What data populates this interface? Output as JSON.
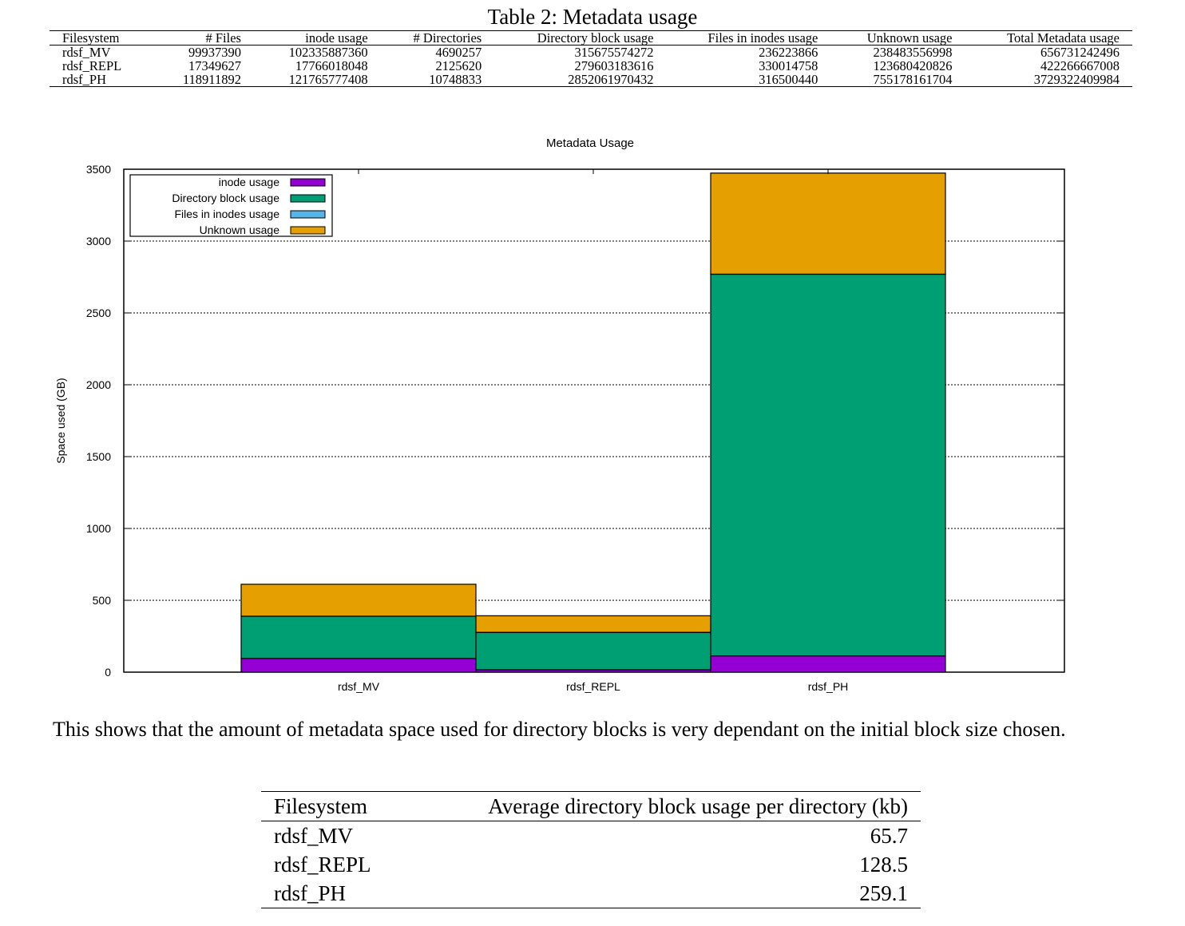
{
  "table1": {
    "caption": "Table 2: Metadata usage",
    "headers": [
      "Filesystem",
      "# Files",
      "inode usage",
      "# Directories",
      "Directory block usage",
      "Files in inodes usage",
      "Unknown usage",
      "Total Metadata usage"
    ],
    "rows": [
      [
        "rdsf_MV",
        "99937390",
        "102335887360",
        "4690257",
        "315675574272",
        "236223866",
        "238483556998",
        "656731242496"
      ],
      [
        "rdsf_REPL",
        "17349627",
        "17766018048",
        "2125620",
        "279603183616",
        "330014758",
        "123680420826",
        "422266667008"
      ],
      [
        "rdsf_PH",
        "118911892",
        "121765777408",
        "10748833",
        "2852061970432",
        "316500440",
        "755178161704",
        "3729322409984"
      ]
    ]
  },
  "chart_data": {
    "type": "bar",
    "stacked": true,
    "title": "Metadata Usage",
    "xlabel": "",
    "ylabel": "Space used (GB)",
    "ylim": [
      0,
      3500
    ],
    "yticks": [
      "0",
      "500",
      "1000",
      "1500",
      "2000",
      "2500",
      "3000",
      "3500"
    ],
    "ytick_values": [
      0,
      500,
      1000,
      1500,
      2000,
      2500,
      3000,
      3500
    ],
    "categories": [
      "rdsf_MV",
      "rdsf_REPL",
      "rdsf_PH"
    ],
    "grid": "horizontal-dotted",
    "legend_position": "top-left",
    "series": [
      {
        "name": "inode usage",
        "color": "#9400d3",
        "values": [
          95.3,
          16.5,
          113.4
        ]
      },
      {
        "name": "Directory block usage",
        "color": "#009e73",
        "values": [
          294.0,
          260.4,
          2656.2
        ]
      },
      {
        "name": "Files in inodes usage",
        "color": "#56b4e9",
        "values": [
          0.2,
          0.3,
          0.3
        ]
      },
      {
        "name": "Unknown usage",
        "color": "#e69f00",
        "values": [
          222.1,
          115.2,
          703.3
        ]
      }
    ]
  },
  "paragraph": "This shows that the amount of metadata space used for directory blocks is very dependant on the initial block size chosen.",
  "table2": {
    "headers": [
      "Filesystem",
      "Average directory block usage per directory (kb)"
    ],
    "rows": [
      [
        "rdsf_MV",
        "65.7"
      ],
      [
        "rdsf_REPL",
        "128.5"
      ],
      [
        "rdsf_PH",
        "259.1"
      ]
    ]
  }
}
